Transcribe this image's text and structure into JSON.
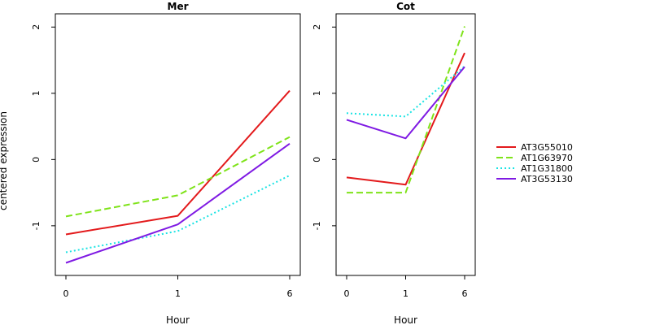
{
  "ylabel": "centered expression",
  "legend": {
    "placement": "right",
    "entries": [
      {
        "name": "AT3G55010",
        "color": "#e31a1c",
        "dash": "solid"
      },
      {
        "name": "AT1G63970",
        "color": "#7fe31a",
        "dash": "dashed"
      },
      {
        "name": "AT1G31800",
        "color": "#1ae3e3",
        "dash": "dotted"
      },
      {
        "name": "AT3G53130",
        "color": "#7f1ae3",
        "dash": "solid"
      }
    ]
  },
  "chart_data": [
    {
      "type": "line",
      "title": "Mer",
      "xlabel": "Hour",
      "ylabel": "centered expression",
      "categories": [
        "0",
        "1",
        "6"
      ],
      "ylim": [
        -1.75,
        2.2
      ],
      "yticks": [
        -1,
        0,
        1,
        2
      ],
      "grid": false,
      "series": [
        {
          "name": "AT3G55010",
          "values": [
            -1.13,
            -0.85,
            1.04
          ]
        },
        {
          "name": "AT1G63970",
          "values": [
            -0.86,
            -0.54,
            0.34
          ]
        },
        {
          "name": "AT1G31800",
          "values": [
            -1.4,
            -1.08,
            -0.24
          ]
        },
        {
          "name": "AT3G53130",
          "values": [
            -1.56,
            -0.98,
            0.24
          ]
        }
      ]
    },
    {
      "type": "line",
      "title": "Cot",
      "xlabel": "Hour",
      "ylabel": "",
      "categories": [
        "0",
        "1",
        "6"
      ],
      "ylim": [
        -1.75,
        2.2
      ],
      "yticks": [
        -1,
        0,
        1,
        2
      ],
      "grid": false,
      "series": [
        {
          "name": "AT3G55010",
          "values": [
            -0.27,
            -0.38,
            1.61
          ]
        },
        {
          "name": "AT1G63970",
          "values": [
            -0.5,
            -0.5,
            2.01
          ]
        },
        {
          "name": "AT1G31800",
          "values": [
            0.7,
            0.65,
            1.41
          ]
        },
        {
          "name": "AT3G53130",
          "values": [
            0.6,
            0.32,
            1.4
          ]
        }
      ]
    }
  ]
}
